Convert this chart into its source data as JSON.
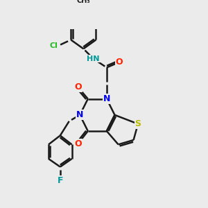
{
  "bg_color": "#ebebeb",
  "bond_color": "#1a1a1a",
  "bond_width": 1.8,
  "atom_colors": {
    "N": "#0000ee",
    "O": "#ff2200",
    "S": "#bbbb00",
    "Cl": "#22bb22",
    "F": "#009999",
    "HN": "#009999",
    "C": "#1a1a1a"
  },
  "font_size": 8
}
